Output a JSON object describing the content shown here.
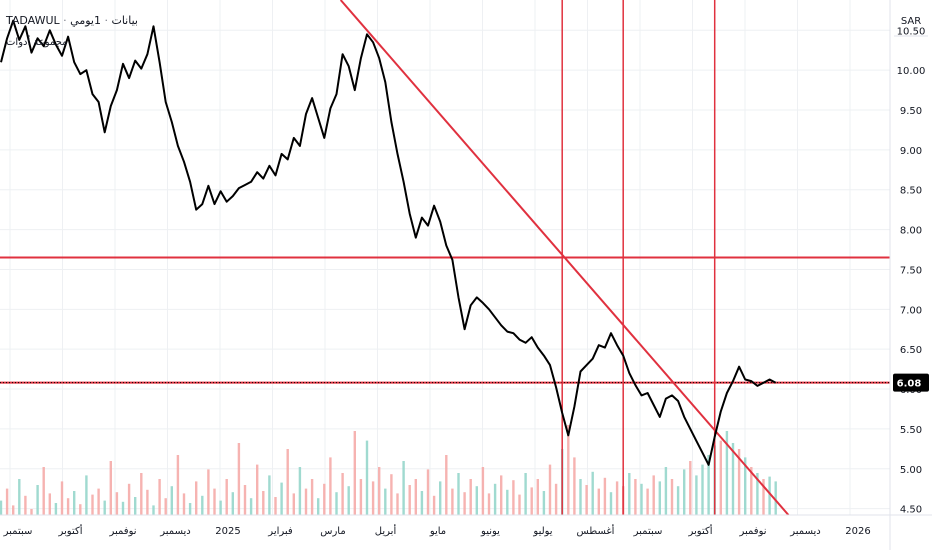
{
  "header": {
    "symbol": "TADAWUL",
    "separator": "·",
    "interval": "1يومي",
    "chart_style": "بيانات",
    "subtitle": "مجموعة أدوات"
  },
  "price_scale": {
    "currency": "SAR",
    "last_price_label": "6.08"
  },
  "colors": {
    "price_line": "#000000",
    "drawings": "#e0313f",
    "volume_up": "#8fd3c8",
    "volume_down": "#f4a6a3",
    "grid": "#eef0f3",
    "last_price_badge": "#000000"
  },
  "chart_data": {
    "type": "line",
    "title": "",
    "xlabel": "",
    "ylabel": "",
    "ylim": [
      4.42,
      10.88
    ],
    "x_ticks": [
      "سبتمبر",
      "أكتوبر",
      "نوفمبر",
      "ديسمبر",
      "2025",
      "فبراير",
      "مارس",
      "أبريل",
      "مايو",
      "يونيو",
      "يوليو",
      "أغسطس",
      "سبتمبر",
      "أكتوبر",
      "نوفمبر",
      "ديسمبر",
      "2026"
    ],
    "y_ticks": [
      4.5,
      5.0,
      5.5,
      6.0,
      6.5,
      7.0,
      7.5,
      8.0,
      8.5,
      9.0,
      9.5,
      10.0,
      10.5
    ],
    "y_tick_labels": [
      "4.50",
      "5.00",
      "5.50",
      "6.00",
      "6.50",
      "7.00",
      "7.50",
      "8.00",
      "8.50",
      "9.00",
      "9.50",
      "10.00",
      "10.50"
    ],
    "series": [
      {
        "style": "line",
        "x": [
          0,
          1,
          2,
          3,
          4,
          5,
          6,
          7,
          8,
          9,
          10,
          11,
          12,
          13,
          14,
          15,
          16,
          17,
          18,
          19,
          20,
          21,
          22,
          23,
          24,
          25,
          26,
          27,
          28,
          29,
          30,
          31,
          32,
          33,
          34,
          35,
          36,
          37,
          38,
          39,
          40,
          41,
          42,
          43,
          44,
          45,
          46,
          47,
          48,
          49,
          50,
          51,
          52,
          53,
          54,
          55,
          56,
          57,
          58,
          59,
          60,
          61,
          62,
          63,
          64,
          65,
          66,
          67,
          68,
          69,
          70,
          71,
          72,
          73,
          74,
          75,
          76,
          77,
          78,
          79,
          80,
          81,
          82,
          83,
          84,
          85,
          86,
          87,
          88,
          89,
          90,
          91,
          92,
          93,
          94,
          95,
          96,
          97,
          98,
          99,
          100,
          101,
          102,
          103,
          104,
          105,
          106,
          107,
          108,
          109,
          110,
          111,
          112,
          113,
          114,
          115,
          116,
          117,
          118,
          119,
          120,
          121,
          122,
          123,
          124,
          125,
          126,
          127
        ],
        "y": [
          10.1,
          10.4,
          10.62,
          10.38,
          10.55,
          10.22,
          10.4,
          10.3,
          10.5,
          10.32,
          10.18,
          10.42,
          10.1,
          9.95,
          10.0,
          9.7,
          9.6,
          9.22,
          9.55,
          9.75,
          10.08,
          9.9,
          10.12,
          10.02,
          10.2,
          10.55,
          10.1,
          9.6,
          9.35,
          9.05,
          8.85,
          8.6,
          8.25,
          8.32,
          8.55,
          8.32,
          8.48,
          8.35,
          8.42,
          8.52,
          8.56,
          8.6,
          8.72,
          8.64,
          8.8,
          8.68,
          8.95,
          8.88,
          9.15,
          9.05,
          9.45,
          9.65,
          9.4,
          9.15,
          9.52,
          9.7,
          10.2,
          10.05,
          9.75,
          10.15,
          10.45,
          10.35,
          10.15,
          9.85,
          9.35,
          8.95,
          8.6,
          8.2,
          7.9,
          8.15,
          8.05,
          8.3,
          8.1,
          7.8,
          7.62,
          7.15,
          6.75,
          7.05,
          7.15,
          7.08,
          7.0,
          6.9,
          6.8,
          6.72,
          6.7,
          6.62,
          6.58,
          6.65,
          6.52,
          6.42,
          6.3,
          6.02,
          5.7,
          5.42,
          5.78,
          6.22,
          6.3,
          6.38,
          6.55,
          6.52,
          6.7,
          6.55,
          6.42,
          6.2,
          6.05,
          5.92,
          5.95,
          5.8,
          5.65,
          5.88,
          5.92,
          5.85,
          5.65,
          5.5,
          5.35,
          5.2,
          5.05,
          5.4,
          5.72,
          5.95,
          6.1,
          6.28,
          6.12,
          6.1,
          6.04,
          6.08,
          6.12,
          6.08
        ]
      }
    ],
    "volume": {
      "up": [
        0.12,
        0.22,
        0.08,
        0.3,
        0.16,
        0.05,
        0.25,
        0.4,
        0.18,
        0.1,
        0.28,
        0.14,
        0.2,
        0.09,
        0.33,
        0.17,
        0.22,
        0.12,
        0.45,
        0.19,
        0.11,
        0.26,
        0.15,
        0.35,
        0.21,
        0.08,
        0.3,
        0.14,
        0.24,
        0.5,
        0.18,
        0.1,
        0.28,
        0.16,
        0.38,
        0.22,
        0.12,
        0.3,
        0.19,
        0.6,
        0.25,
        0.14,
        0.42,
        0.2,
        0.33,
        0.15,
        0.27,
        0.55,
        0.18,
        0.4,
        0.22,
        0.3,
        0.14,
        0.26,
        0.48,
        0.19,
        0.35,
        0.24,
        0.7,
        0.3,
        0.62,
        0.28,
        0.4,
        0.22,
        0.34,
        0.18,
        0.45,
        0.25,
        0.3,
        0.2,
        0.38,
        0.16,
        0.28,
        0.5,
        0.22,
        0.35,
        0.19,
        0.3,
        0.24,
        0.4,
        0.18,
        0.26,
        0.33,
        0.21,
        0.29,
        0.17,
        0.35,
        0.23,
        0.3,
        0.2,
        0.42,
        0.26,
        0.55,
        0.75,
        0.48,
        0.3,
        0.25,
        0.36,
        0.22,
        0.31,
        0.19,
        0.28,
        0.24,
        0.35,
        0.3,
        0.26,
        0.22,
        0.33,
        0.28,
        0.4,
        0.3,
        0.24,
        0.38,
        0.45,
        0.33,
        0.42,
        0.5,
        0.58,
        0.62,
        0.7,
        0.6,
        0.55,
        0.48,
        0.4,
        0.35,
        0.3,
        0.32,
        0.28
      ],
      "up_mask": [
        1,
        0,
        0,
        1,
        0,
        0,
        1,
        0,
        0,
        1,
        0,
        0,
        1,
        0,
        1,
        0,
        0,
        1,
        0,
        0,
        1,
        0,
        1,
        0,
        0,
        1,
        0,
        0,
        1,
        0,
        0,
        1,
        0,
        1,
        0,
        0,
        1,
        0,
        1,
        0,
        0,
        1,
        0,
        0,
        1,
        0,
        1,
        0,
        0,
        1,
        0,
        0,
        1,
        0,
        0,
        1,
        0,
        1,
        0,
        0,
        1,
        0,
        0,
        1,
        0,
        0,
        1,
        0,
        0,
        1,
        0,
        0,
        1,
        0,
        0,
        1,
        0,
        0,
        1,
        0,
        0,
        1,
        0,
        1,
        0,
        0,
        1,
        0,
        0,
        1,
        0,
        0,
        1,
        0,
        0,
        1,
        0,
        1,
        0,
        0,
        1,
        0,
        0,
        1,
        0,
        1,
        0,
        0,
        1,
        1,
        0,
        1,
        1,
        0,
        1,
        1,
        1,
        1,
        0,
        1,
        1,
        0,
        1,
        0,
        1,
        0,
        1,
        1
      ]
    },
    "horizontal_lines": [
      7.65,
      6.08
    ],
    "trendline": {
      "from": [
        60.0,
        10.5
      ],
      "to": [
        122.5,
        5.0
      ]
    },
    "vertical_lines_x": [
      92,
      102,
      117
    ],
    "last_price": 6.08,
    "grid": true
  }
}
